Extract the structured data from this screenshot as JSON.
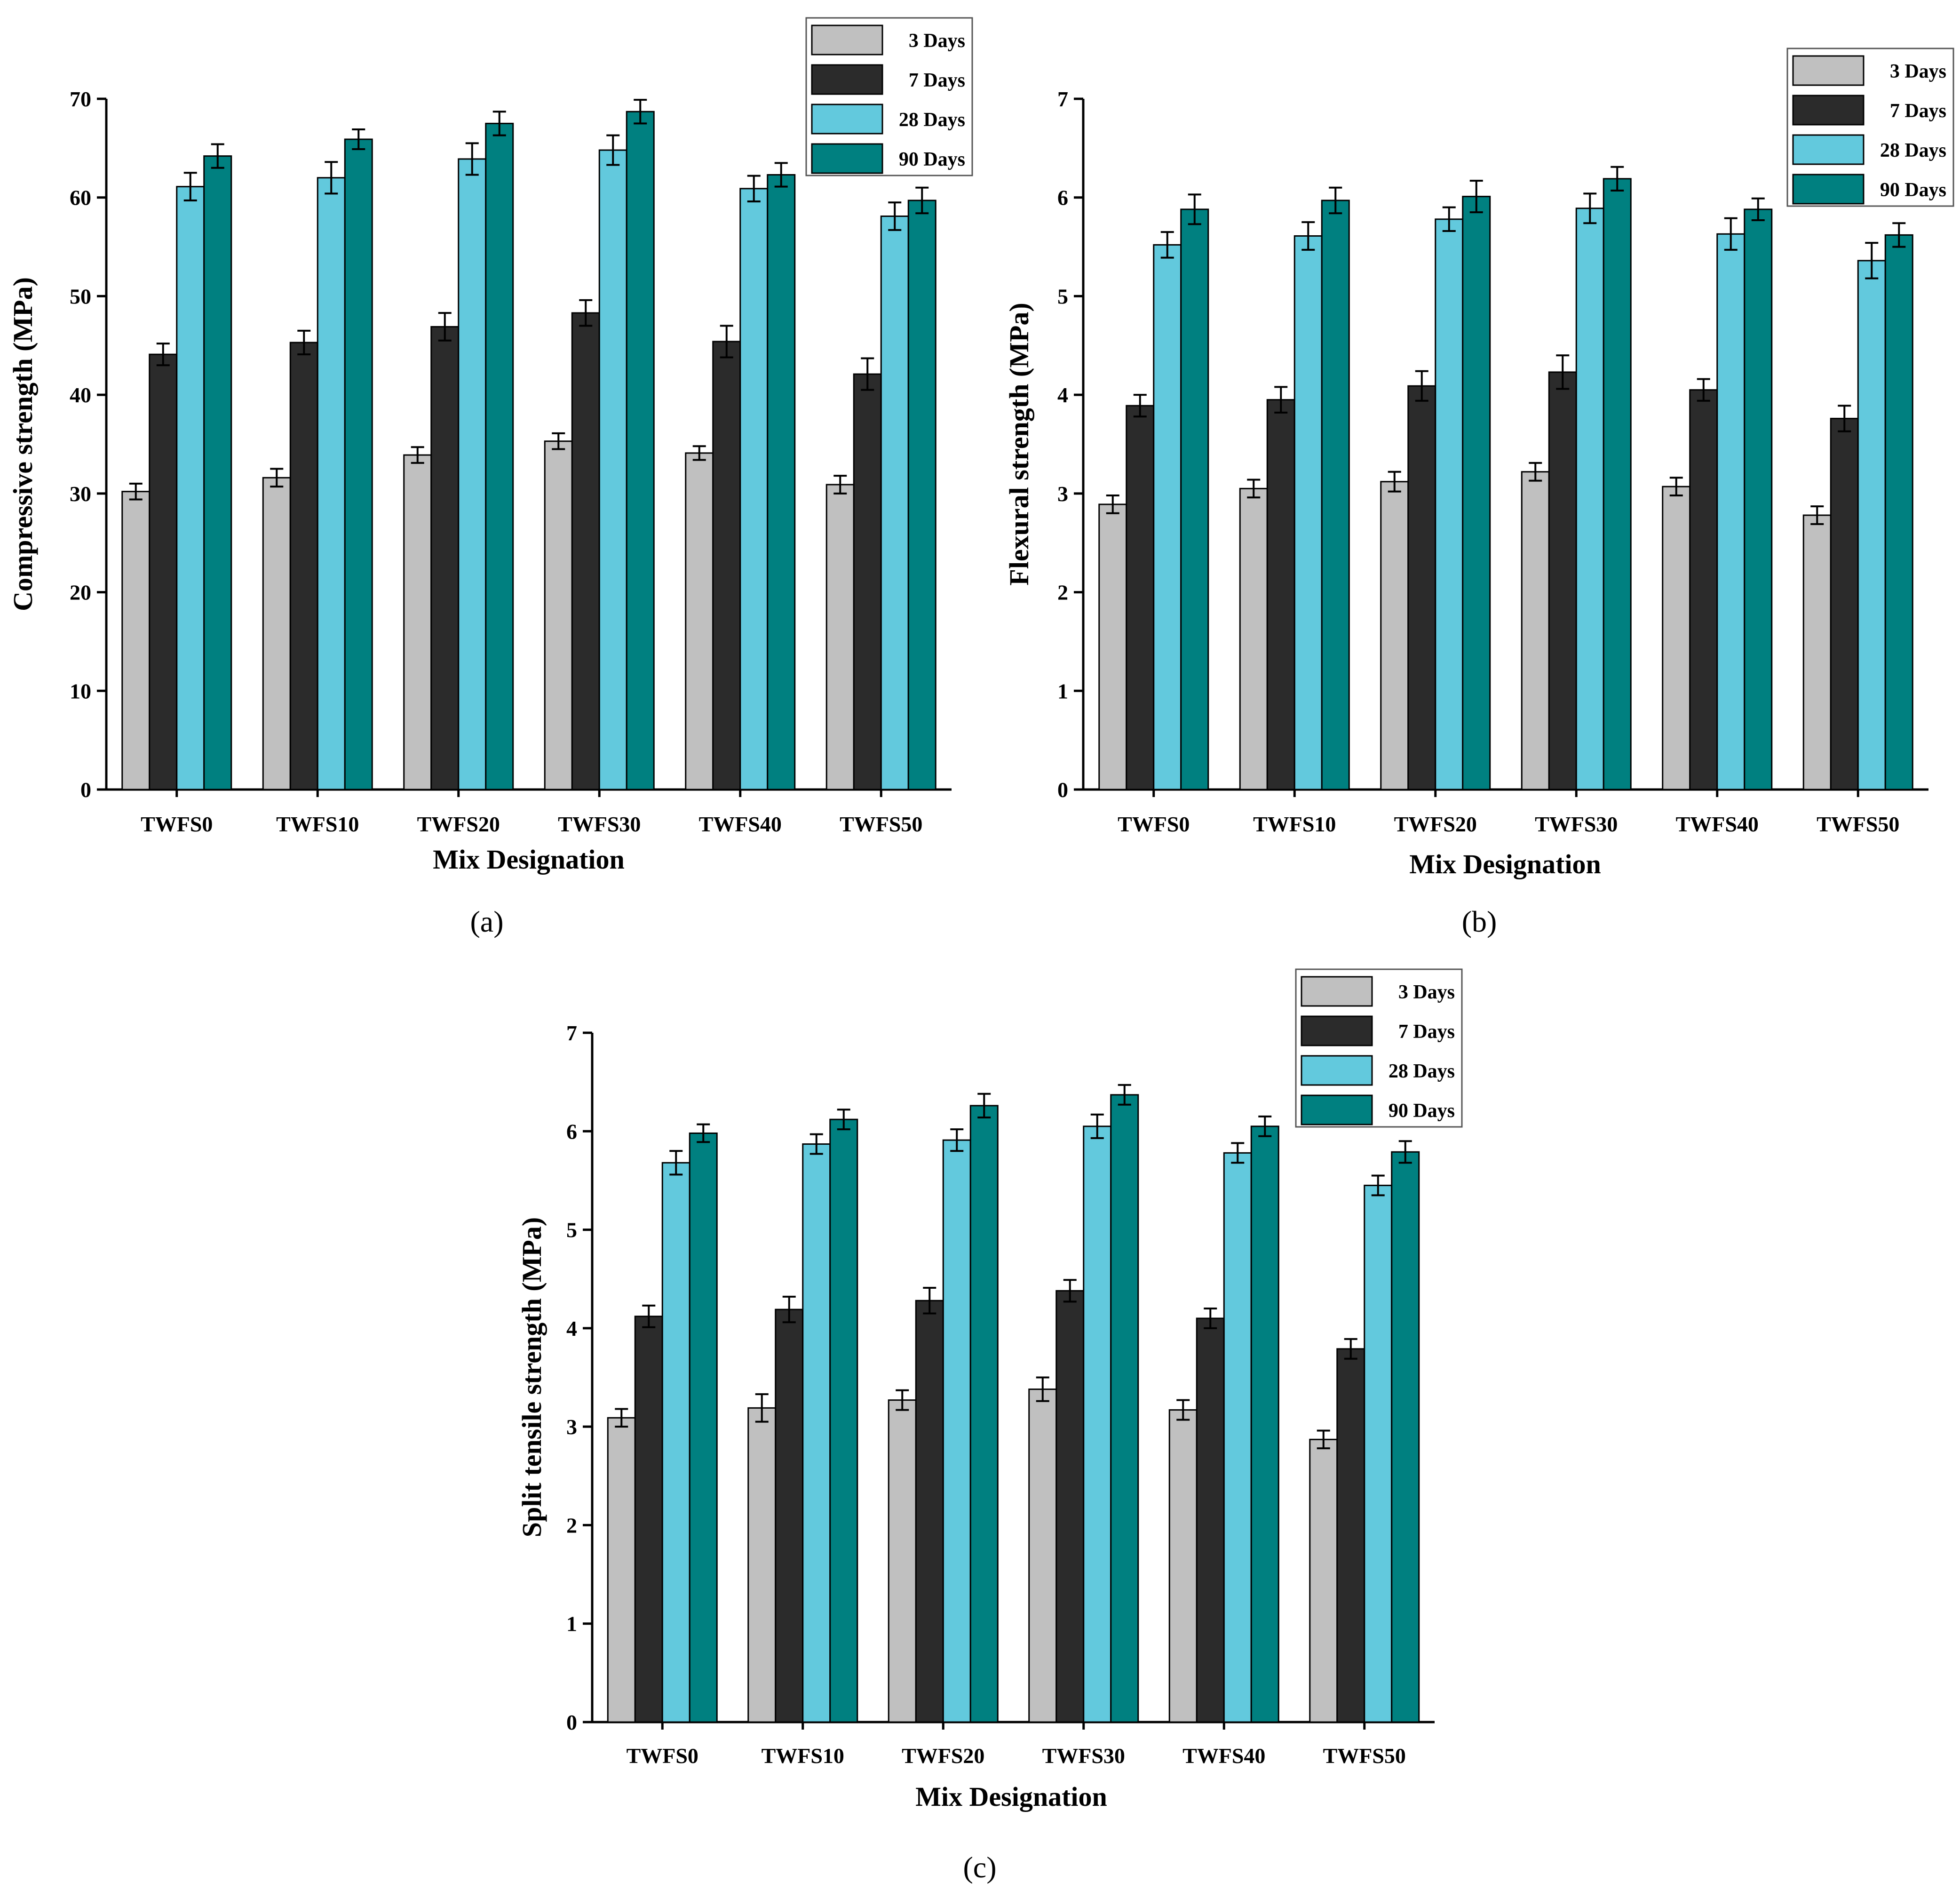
{
  "chart_data": [
    {
      "type": "bar",
      "panel_label": "(a)",
      "categories": [
        "TWFS0",
        "TWFS10",
        "TWFS20",
        "TWFS30",
        "TWFS40",
        "TWFS50"
      ],
      "series": [
        {
          "name": "3 Days",
          "color": "#c0c0c0",
          "values": [
            30.2,
            31.6,
            33.9,
            35.3,
            34.1,
            30.9
          ],
          "errors": [
            0.8,
            0.9,
            0.8,
            0.8,
            0.7,
            0.9
          ]
        },
        {
          "name": "7 Days",
          "color": "#2b2b2b",
          "values": [
            44.1,
            45.3,
            46.9,
            48.3,
            45.4,
            42.1
          ],
          "errors": [
            1.1,
            1.2,
            1.4,
            1.3,
            1.6,
            1.6
          ]
        },
        {
          "name": "28 Days",
          "color": "#62c9dd",
          "values": [
            61.1,
            62.0,
            63.9,
            64.8,
            60.9,
            58.1
          ],
          "errors": [
            1.4,
            1.6,
            1.6,
            1.5,
            1.3,
            1.4
          ]
        },
        {
          "name": "90 Days",
          "color": "#008080",
          "values": [
            64.2,
            65.9,
            67.5,
            68.7,
            62.3,
            59.7
          ],
          "errors": [
            1.2,
            1.0,
            1.2,
            1.2,
            1.2,
            1.3
          ]
        }
      ],
      "title": "",
      "xlabel": "Mix Designation",
      "ylabel": "Compressive strength (MPa)",
      "ylim": [
        0,
        70
      ],
      "yticks": [
        "0",
        "10",
        "20",
        "30",
        "40",
        "50",
        "60",
        "70"
      ],
      "legend_location": "top-right",
      "grid": false
    },
    {
      "type": "bar",
      "panel_label": "(b)",
      "categories": [
        "TWFS0",
        "TWFS10",
        "TWFS20",
        "TWFS30",
        "TWFS40",
        "TWFS50"
      ],
      "series": [
        {
          "name": "3 Days",
          "color": "#c0c0c0",
          "values": [
            2.89,
            3.05,
            3.12,
            3.22,
            3.07,
            2.78
          ],
          "errors": [
            0.09,
            0.09,
            0.1,
            0.09,
            0.09,
            0.09
          ]
        },
        {
          "name": "7 Days",
          "color": "#2b2b2b",
          "values": [
            3.89,
            3.95,
            4.09,
            4.23,
            4.05,
            3.76
          ],
          "errors": [
            0.11,
            0.13,
            0.15,
            0.17,
            0.11,
            0.13
          ]
        },
        {
          "name": "28 Days",
          "color": "#62c9dd",
          "values": [
            5.52,
            5.61,
            5.78,
            5.89,
            5.63,
            5.36
          ],
          "errors": [
            0.13,
            0.14,
            0.12,
            0.15,
            0.16,
            0.18
          ]
        },
        {
          "name": "90 Days",
          "color": "#008080",
          "values": [
            5.88,
            5.97,
            6.01,
            6.19,
            5.88,
            5.62
          ],
          "errors": [
            0.15,
            0.13,
            0.16,
            0.12,
            0.11,
            0.12
          ]
        }
      ],
      "title": "",
      "xlabel": "Mix Designation",
      "ylabel": "Flexural strength (MPa)",
      "ylim": [
        0,
        7
      ],
      "yticks": [
        "0",
        "1",
        "2",
        "3",
        "4",
        "5",
        "6",
        "7"
      ],
      "legend_location": "top-right",
      "grid": false
    },
    {
      "type": "bar",
      "panel_label": "(c)",
      "categories": [
        "TWFS0",
        "TWFS10",
        "TWFS20",
        "TWFS30",
        "TWFS40",
        "TWFS50"
      ],
      "series": [
        {
          "name": "3 Days",
          "color": "#c0c0c0",
          "values": [
            3.09,
            3.19,
            3.27,
            3.38,
            3.17,
            2.87
          ],
          "errors": [
            0.09,
            0.14,
            0.1,
            0.12,
            0.1,
            0.09
          ]
        },
        {
          "name": "7 Days",
          "color": "#2b2b2b",
          "values": [
            4.12,
            4.19,
            4.28,
            4.38,
            4.1,
            3.79
          ],
          "errors": [
            0.11,
            0.13,
            0.13,
            0.11,
            0.1,
            0.1
          ]
        },
        {
          "name": "28 Days",
          "color": "#62c9dd",
          "values": [
            5.68,
            5.87,
            5.91,
            6.05,
            5.78,
            5.45
          ],
          "errors": [
            0.12,
            0.1,
            0.11,
            0.12,
            0.1,
            0.1
          ]
        },
        {
          "name": "90 Days",
          "color": "#008080",
          "values": [
            5.98,
            6.12,
            6.26,
            6.37,
            6.05,
            5.79
          ],
          "errors": [
            0.09,
            0.1,
            0.12,
            0.1,
            0.1,
            0.11
          ]
        }
      ],
      "title": "",
      "xlabel": "Mix Designation",
      "ylabel": "Split tensile strength (MPa)",
      "ylim": [
        0,
        7
      ],
      "yticks": [
        "0",
        "1",
        "2",
        "3",
        "4",
        "5",
        "6",
        "7"
      ],
      "legend_location": "top-right",
      "grid": false
    }
  ]
}
